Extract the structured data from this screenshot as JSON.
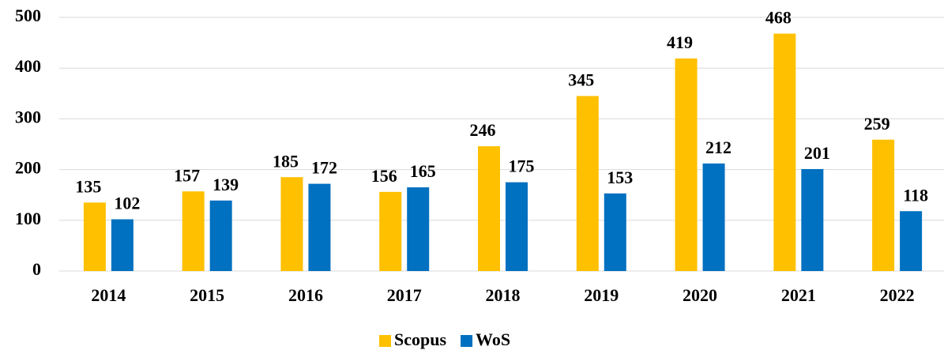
{
  "chart_data": {
    "type": "bar",
    "categories": [
      "2014",
      "2015",
      "2016",
      "2017",
      "2018",
      "2019",
      "2020",
      "2021",
      "2022"
    ],
    "series": [
      {
        "name": "Scopus",
        "color": "#FFC000",
        "values": [
          135,
          157,
          185,
          156,
          246,
          345,
          419,
          468,
          259
        ]
      },
      {
        "name": "WoS",
        "color": "#0070C0",
        "values": [
          102,
          139,
          172,
          165,
          175,
          153,
          212,
          201,
          118
        ]
      }
    ],
    "ylim": [
      0,
      500
    ],
    "yticks": [
      0,
      100,
      200,
      300,
      400,
      500
    ],
    "grid": true,
    "legend": "bottom"
  }
}
